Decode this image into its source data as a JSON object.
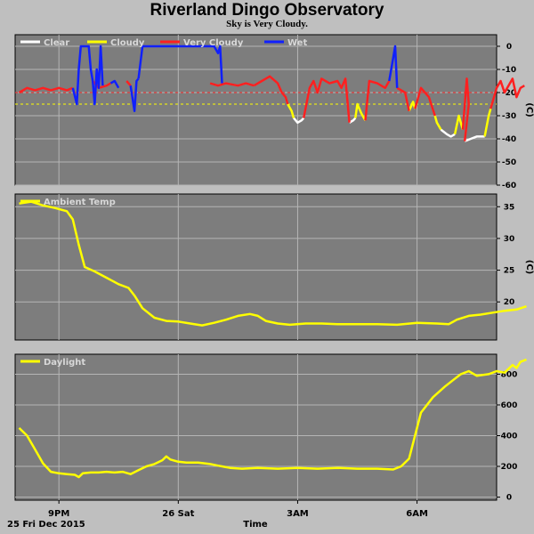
{
  "title": "Riverland Dingo Observatory",
  "subtitle": "Sky is Very Cloudy.",
  "x_axis": {
    "label": "Time",
    "date_label": "25 Fri Dec 2015",
    "ticks": [
      {
        "t": 0,
        "label": "9PM"
      },
      {
        "t": 3,
        "label": "26 Sat"
      },
      {
        "t": 6,
        "label": "3AM"
      },
      {
        "t": 9,
        "label": "6AM"
      }
    ],
    "range_hours": [
      -1.1,
      11.0
    ]
  },
  "chart_data": [
    {
      "type": "line",
      "ylabel": "(C)",
      "ylim": [
        -60,
        5
      ],
      "yticks": [
        0,
        -10,
        -20,
        -30,
        -40,
        -50,
        -60
      ],
      "legend_placement": "top-left",
      "thresholds": [
        {
          "value": -20,
          "color": "#ff3030"
        },
        {
          "value": -25,
          "color": "#ffff00"
        }
      ],
      "series": [
        {
          "name": "Clear",
          "color": "#ffffff",
          "segments": [
            [
              [
                5.9,
                -31
              ],
              [
                6.0,
                -33
              ],
              [
                6.1,
                -32
              ],
              [
                6.15,
                -31
              ]
            ],
            [
              [
                7.3,
                -33
              ],
              [
                7.4,
                -32
              ],
              [
                7.45,
                -31
              ]
            ],
            [
              [
                9.6,
                -36
              ],
              [
                9.75,
                -38
              ],
              [
                9.85,
                -39
              ],
              [
                9.95,
                -38
              ]
            ],
            [
              [
                10.2,
                -41
              ],
              [
                10.35,
                -40
              ],
              [
                10.5,
                -39
              ],
              [
                10.7,
                -39
              ]
            ]
          ]
        },
        {
          "name": "Cloudy",
          "color": "#ffff00",
          "segments": [
            [
              [
                5.75,
                -25
              ],
              [
                5.85,
                -28
              ],
              [
                5.9,
                -31
              ]
            ],
            [
              [
                7.45,
                -31
              ],
              [
                7.5,
                -25
              ],
              [
                7.6,
                -29
              ],
              [
                7.7,
                -32
              ]
            ],
            [
              [
                8.8,
                -28
              ],
              [
                8.9,
                -24
              ],
              [
                8.95,
                -27
              ]
            ],
            [
              [
                9.45,
                -30
              ],
              [
                9.5,
                -33
              ],
              [
                9.6,
                -36
              ]
            ],
            [
              [
                9.95,
                -38
              ],
              [
                10.05,
                -30
              ],
              [
                10.15,
                -36
              ]
            ],
            [
              [
                10.7,
                -39
              ],
              [
                10.8,
                -30
              ],
              [
                10.85,
                -27
              ]
            ]
          ]
        },
        {
          "name": "Very Cloudy",
          "color": "#ff2020",
          "segments": [
            [
              [
                -1.0,
                -20
              ],
              [
                -0.8,
                -18
              ],
              [
                -0.6,
                -19
              ],
              [
                -0.4,
                -18
              ],
              [
                -0.2,
                -19
              ],
              [
                0.0,
                -18
              ],
              [
                0.2,
                -19
              ],
              [
                0.35,
                -18
              ]
            ],
            [
              [
                0.85,
                -15
              ],
              [
                1.0,
                -18
              ],
              [
                1.2,
                -17
              ],
              [
                1.3,
                -16
              ]
            ],
            [
              [
                1.7,
                -15
              ],
              [
                1.8,
                -17
              ]
            ],
            [
              [
                3.8,
                -16
              ],
              [
                4.0,
                -17
              ],
              [
                4.2,
                -16
              ],
              [
                4.5,
                -17
              ],
              [
                4.7,
                -16
              ],
              [
                4.9,
                -17
              ]
            ],
            [
              [
                4.9,
                -17
              ],
              [
                5.1,
                -15
              ],
              [
                5.3,
                -13
              ],
              [
                5.5,
                -16
              ],
              [
                5.6,
                -20
              ],
              [
                5.7,
                -22
              ],
              [
                5.75,
                -25
              ]
            ],
            [
              [
                6.15,
                -31
              ],
              [
                6.3,
                -18
              ],
              [
                6.4,
                -15
              ],
              [
                6.5,
                -20
              ],
              [
                6.6,
                -14
              ],
              [
                6.8,
                -16
              ],
              [
                7.0,
                -15
              ],
              [
                7.1,
                -18
              ],
              [
                7.2,
                -14
              ],
              [
                7.3,
                -33
              ]
            ],
            [
              [
                7.7,
                -32
              ],
              [
                7.8,
                -15
              ],
              [
                8.0,
                -16
              ],
              [
                8.2,
                -18
              ],
              [
                8.3,
                -15
              ]
            ],
            [
              [
                8.5,
                -18
              ],
              [
                8.7,
                -20
              ],
              [
                8.8,
                -28
              ]
            ],
            [
              [
                8.95,
                -27
              ],
              [
                9.1,
                -18
              ],
              [
                9.3,
                -22
              ],
              [
                9.45,
                -30
              ]
            ],
            [
              [
                10.15,
                -36
              ],
              [
                10.25,
                -14
              ],
              [
                10.3,
                -25
              ],
              [
                10.2,
                -41
              ]
            ],
            [
              [
                10.85,
                -27
              ],
              [
                11.0,
                -18
              ],
              [
                11.1,
                -15
              ],
              [
                11.2,
                -20
              ],
              [
                11.3,
                -17
              ],
              [
                11.4,
                -14
              ],
              [
                11.5,
                -22
              ],
              [
                11.6,
                -18
              ],
              [
                11.7,
                -17
              ]
            ]
          ]
        },
        {
          "name": "Wet",
          "color": "#1020ff",
          "segments": [
            [
              [
                0.35,
                -18
              ],
              [
                0.45,
                -25
              ],
              [
                0.5,
                -10
              ],
              [
                0.55,
                0
              ],
              [
                0.75,
                0
              ],
              [
                0.8,
                -10
              ],
              [
                0.85,
                -15
              ]
            ],
            [
              [
                0.85,
                -15
              ],
              [
                0.9,
                -25
              ],
              [
                0.95,
                -10
              ],
              [
                1.0,
                -18
              ],
              [
                1.05,
                0
              ],
              [
                1.1,
                -17
              ]
            ],
            [
              [
                1.3,
                -16
              ],
              [
                1.4,
                -15
              ],
              [
                1.5,
                -18
              ]
            ],
            [
              [
                1.8,
                -17
              ],
              [
                1.9,
                -28
              ],
              [
                1.95,
                -15
              ],
              [
                2.0,
                -14
              ]
            ],
            [
              [
                2.0,
                -14
              ],
              [
                2.1,
                0
              ],
              [
                2.5,
                0
              ],
              [
                3.0,
                0
              ],
              [
                3.5,
                0
              ],
              [
                3.9,
                0
              ],
              [
                4.0,
                -3
              ],
              [
                4.05,
                0
              ],
              [
                4.1,
                -16
              ]
            ],
            [
              [
                8.3,
                -15
              ],
              [
                8.4,
                -5
              ],
              [
                8.45,
                0
              ],
              [
                8.5,
                -18
              ]
            ]
          ]
        }
      ]
    },
    {
      "type": "line",
      "ylabel": "(C)",
      "ylim": [
        14,
        37
      ],
      "yticks": [
        35,
        30,
        25,
        20
      ],
      "legend_placement": "top-left",
      "series": [
        {
          "name": "Ambient Temp",
          "color": "#ffff00",
          "points": [
            [
              -1.0,
              35.5
            ],
            [
              -0.7,
              35.8
            ],
            [
              -0.4,
              35.2
            ],
            [
              -0.1,
              34.8
            ],
            [
              0.2,
              34.3
            ],
            [
              0.35,
              33.0
            ],
            [
              0.5,
              29.0
            ],
            [
              0.65,
              25.5
            ],
            [
              0.9,
              24.8
            ],
            [
              1.2,
              23.8
            ],
            [
              1.5,
              22.8
            ],
            [
              1.75,
              22.2
            ],
            [
              1.9,
              21.0
            ],
            [
              2.1,
              19.0
            ],
            [
              2.4,
              17.5
            ],
            [
              2.7,
              17.0
            ],
            [
              3.0,
              16.9
            ],
            [
              3.3,
              16.6
            ],
            [
              3.6,
              16.3
            ],
            [
              3.9,
              16.7
            ],
            [
              4.2,
              17.2
            ],
            [
              4.5,
              17.8
            ],
            [
              4.8,
              18.1
            ],
            [
              5.0,
              17.8
            ],
            [
              5.2,
              17.0
            ],
            [
              5.5,
              16.6
            ],
            [
              5.8,
              16.4
            ],
            [
              6.2,
              16.6
            ],
            [
              6.6,
              16.6
            ],
            [
              7.0,
              16.5
            ],
            [
              7.5,
              16.5
            ],
            [
              8.0,
              16.5
            ],
            [
              8.5,
              16.4
            ],
            [
              9.0,
              16.7
            ],
            [
              9.5,
              16.6
            ],
            [
              9.8,
              16.5
            ],
            [
              10.0,
              17.2
            ],
            [
              10.3,
              17.8
            ],
            [
              10.6,
              18.0
            ],
            [
              10.9,
              18.3
            ],
            [
              11.2,
              18.6
            ],
            [
              11.5,
              18.8
            ],
            [
              11.75,
              19.3
            ]
          ]
        }
      ]
    },
    {
      "type": "line",
      "ylabel": "",
      "ylim": [
        -20,
        930
      ],
      "yticks": [
        800,
        600,
        400,
        200,
        0
      ],
      "legend_placement": "top-left",
      "series": [
        {
          "name": "Daylight",
          "color": "#ffff00",
          "points": [
            [
              -1.0,
              450
            ],
            [
              -0.8,
              400
            ],
            [
              -0.6,
              310
            ],
            [
              -0.4,
              220
            ],
            [
              -0.2,
              165
            ],
            [
              0.0,
              155
            ],
            [
              0.2,
              150
            ],
            [
              0.4,
              145
            ],
            [
              0.5,
              130
            ],
            [
              0.6,
              155
            ],
            [
              0.8,
              160
            ],
            [
              1.0,
              160
            ],
            [
              1.2,
              165
            ],
            [
              1.4,
              160
            ],
            [
              1.6,
              165
            ],
            [
              1.8,
              150
            ],
            [
              2.0,
              175
            ],
            [
              2.2,
              200
            ],
            [
              2.4,
              215
            ],
            [
              2.6,
              240
            ],
            [
              2.7,
              265
            ],
            [
              2.8,
              245
            ],
            [
              3.0,
              230
            ],
            [
              3.2,
              225
            ],
            [
              3.5,
              225
            ],
            [
              3.8,
              215
            ],
            [
              4.0,
              205
            ],
            [
              4.3,
              190
            ],
            [
              4.6,
              185
            ],
            [
              5.0,
              190
            ],
            [
              5.5,
              185
            ],
            [
              6.0,
              190
            ],
            [
              6.5,
              185
            ],
            [
              7.0,
              190
            ],
            [
              7.5,
              185
            ],
            [
              8.0,
              185
            ],
            [
              8.4,
              180
            ],
            [
              8.6,
              200
            ],
            [
              8.8,
              250
            ],
            [
              8.95,
              400
            ],
            [
              9.1,
              550
            ],
            [
              9.4,
              650
            ],
            [
              9.7,
              720
            ],
            [
              9.9,
              760
            ],
            [
              10.1,
              800
            ],
            [
              10.3,
              820
            ],
            [
              10.5,
              790
            ],
            [
              10.8,
              800
            ],
            [
              11.0,
              820
            ],
            [
              11.2,
              810
            ],
            [
              11.4,
              860
            ],
            [
              11.5,
              840
            ],
            [
              11.6,
              880
            ],
            [
              11.75,
              895
            ]
          ]
        }
      ]
    }
  ]
}
